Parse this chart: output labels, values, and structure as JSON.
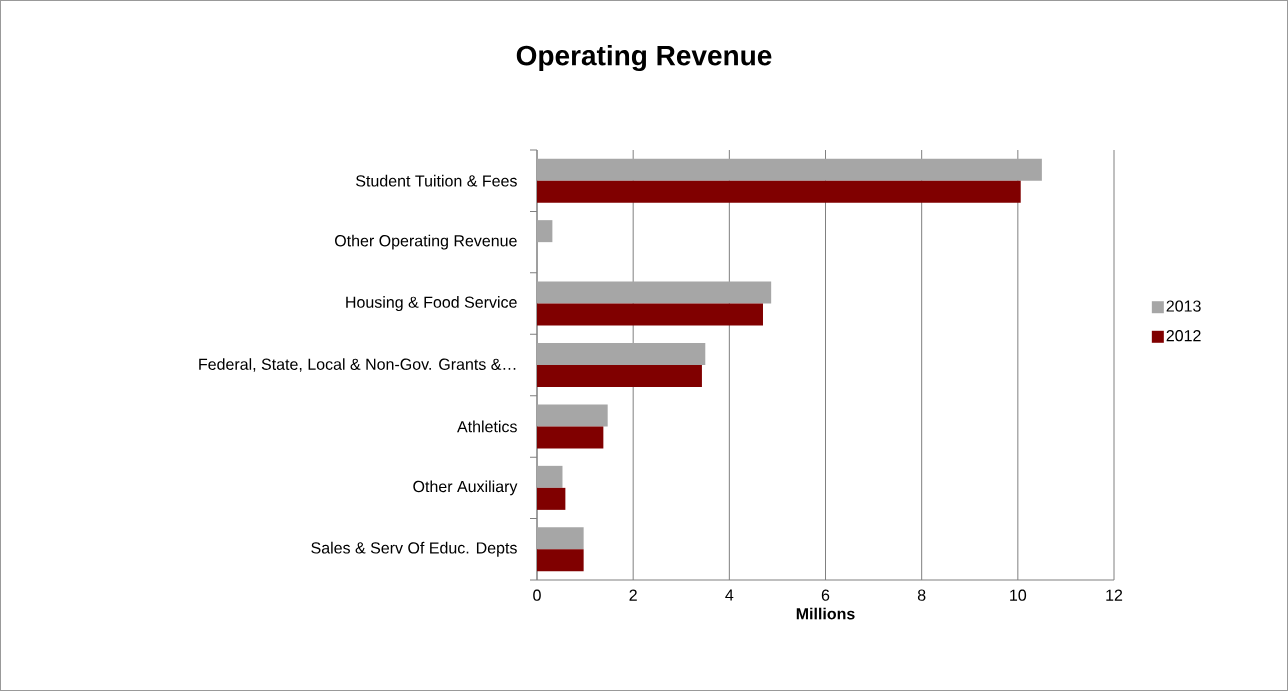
{
  "chart_data": {
    "type": "bar",
    "orientation": "horizontal",
    "title": "Operating Revenue",
    "xlabel": "Millions",
    "categories": [
      "Student Tuition & Fees",
      "Other Operating Revenue",
      "Housing & Food Service",
      "Federal, State, Local & Non-Gov. Grants &…",
      "Athletics",
      "Other Auxiliary",
      "Sales & Serv Of Educ. Depts"
    ],
    "series": [
      {
        "name": "2013",
        "color": "#a6a6a6",
        "values": [
          10.5,
          0.32,
          4.87,
          3.5,
          1.47,
          0.53,
          0.97
        ]
      },
      {
        "name": "2012",
        "color": "#800000",
        "values": [
          10.06,
          null,
          4.7,
          3.43,
          1.38,
          0.59,
          0.97
        ]
      }
    ],
    "xlim": [
      0,
      12
    ],
    "xticks": [
      0,
      2,
      4,
      6,
      8,
      10,
      12
    ],
    "grid": "x",
    "legend": "right"
  }
}
